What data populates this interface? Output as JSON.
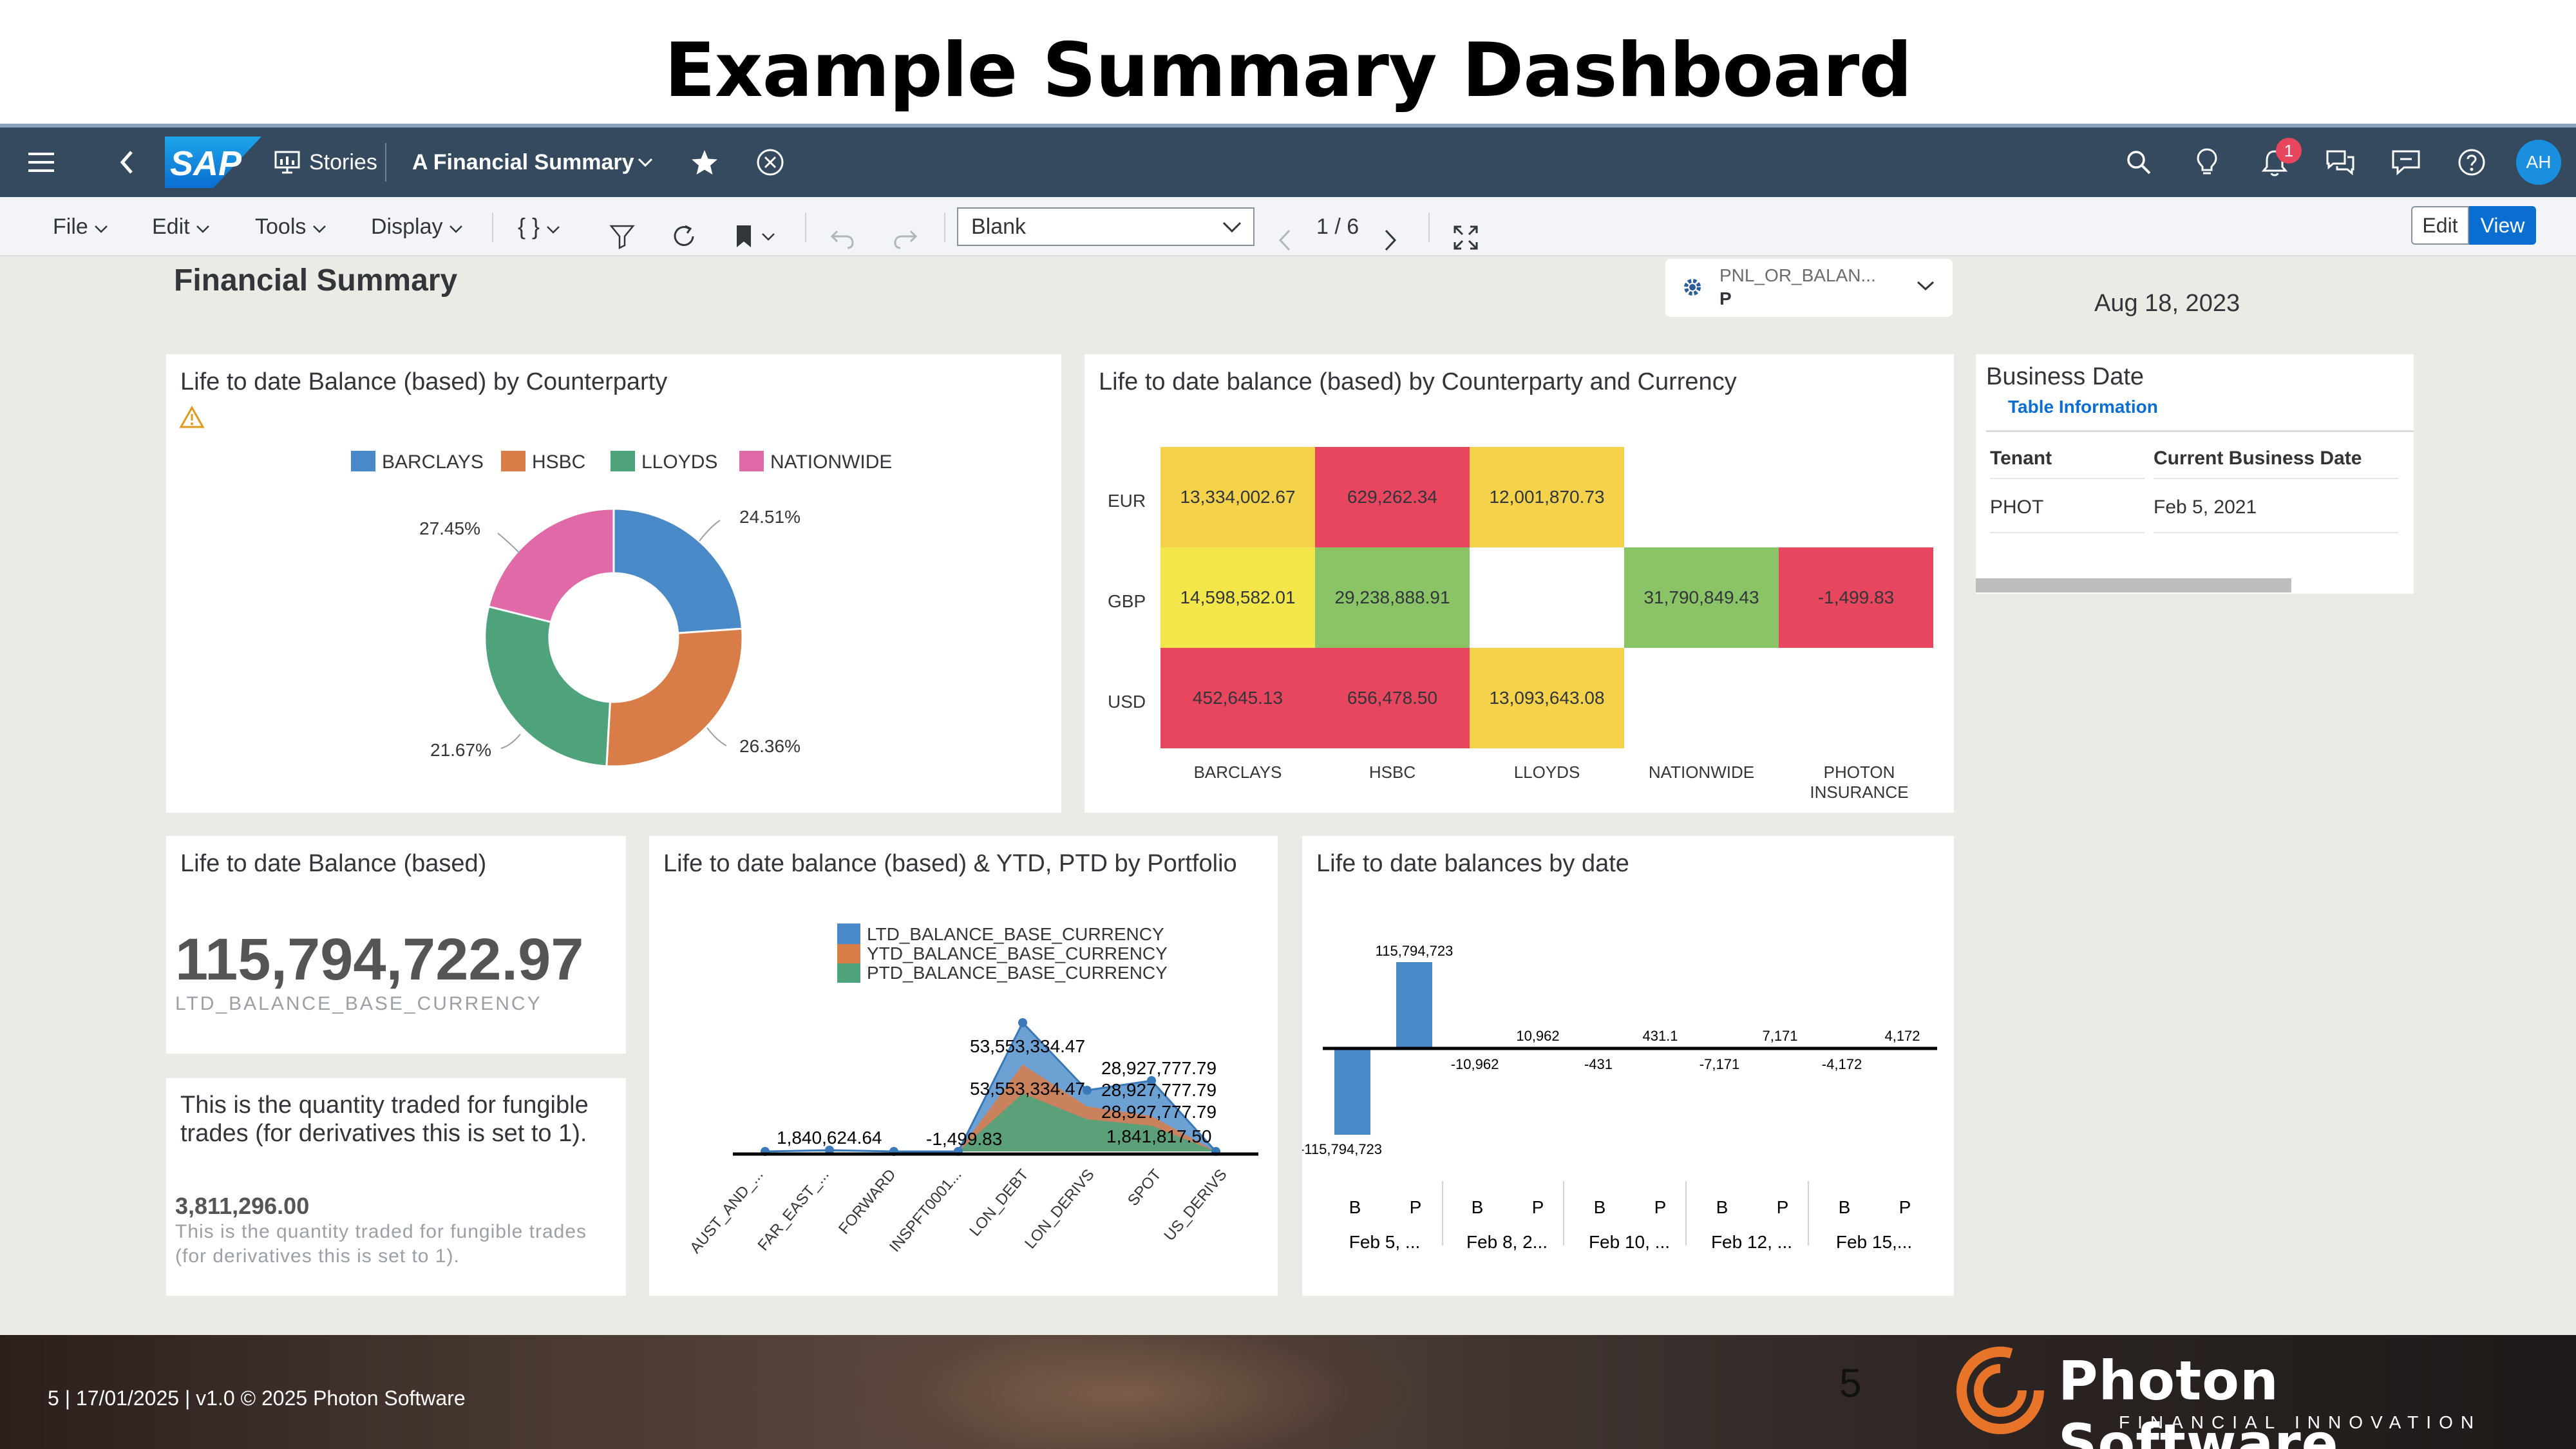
{
  "slide": {
    "title": "Example Summary Dashboard",
    "page_number": "5"
  },
  "shell": {
    "stories_label": "Stories",
    "story_name": "A Financial Summary",
    "notification_count": "1",
    "avatar_initials": "AH",
    "logo": "SAP",
    "icons": [
      "menu-icon",
      "back-icon",
      "stories-icon",
      "chevron-down-icon",
      "star-icon",
      "close-circle-icon",
      "search-icon",
      "lightbulb-icon",
      "bell-icon",
      "discussions-icon",
      "feedback-icon",
      "help-icon"
    ]
  },
  "toolbar": {
    "file": "File",
    "edit": "Edit",
    "tools": "Tools",
    "display": "Display",
    "curly": "{ }",
    "page_select": "Blank",
    "pager": "1 / 6",
    "edit_btn": "Edit",
    "view_btn": "View"
  },
  "page": {
    "title": "Financial Summary",
    "filter_line1": "PNL_OR_BALAN...",
    "filter_line2": "P",
    "date": "Aug 18, 2023"
  },
  "donut": {
    "title": "Life to date Balance (based) by Counterparty",
    "legend": [
      "BARCLAYS",
      "HSBC",
      "LLOYDS",
      "NATIONWIDE"
    ],
    "labels": [
      "24.51%",
      "26.36%",
      "21.67%",
      "27.45%"
    ]
  },
  "heatmap": {
    "title": "Life to date balance (based) by Counterparty and Currency",
    "rows": [
      "EUR",
      "GBP",
      "USD"
    ],
    "cols": [
      "BARCLAYS",
      "HSBC",
      "LLOYDS",
      "NATIONWIDE",
      "PHOTON INSURANCE"
    ],
    "cells": [
      [
        "13,334,002.67",
        "629,262.34",
        "12,001,870.73",
        "",
        ""
      ],
      [
        "14,598,582.01",
        "29,238,888.91",
        "",
        "31,790,849.43",
        "-1,499.83"
      ],
      [
        "452,645.13",
        "656,478.50",
        "13,093,643.08",
        "",
        ""
      ]
    ]
  },
  "business_date": {
    "title": "Business Date",
    "tab": "Table Information",
    "col_tenant": "Tenant",
    "col_date": "Current Business Date",
    "tenant": "PHOT",
    "date": "Feb 5, 2021"
  },
  "kpi": {
    "title": "Life to date Balance (based)",
    "value": "115,794,722.97",
    "measure": "LTD_BALANCE_BASE_CURRENCY"
  },
  "fungible": {
    "heading": "This is the quantity traded for fungible trades (for derivatives this is set to 1).",
    "value": "3,811,296.00",
    "desc": "This is the quantity traded for fungible trades (for derivatives this is set to 1)."
  },
  "portfolio": {
    "title": "Life to date balance (based) & YTD, PTD by Portfolio",
    "legend": [
      "LTD_BALANCE_BASE_CURRENCY",
      "YTD_BALANCE_BASE_CURRENCY",
      "PTD_BALANCE_BASE_CURRENCY"
    ],
    "labels": [
      "53,553,334.47",
      "53,553,334.47",
      "28,927,777.79",
      "28,927,777.79",
      "28,927,777.79",
      "1,840,624.64",
      "-1,499.83",
      "1,841,817.50"
    ],
    "categories": [
      "AUST_AND_...",
      "FAR_EAST_...",
      "FORWARD",
      "INSPFT0001...",
      "LON_DEBT",
      "LON_DERIVS",
      "SPOT",
      "US_DERIVS"
    ]
  },
  "by_date": {
    "title": "Life to date balances by date",
    "values": [
      "115,794,723",
      "-115,794,723",
      "10,962",
      "-10,962",
      "431.1",
      "-431",
      "7,171",
      "-7,171",
      "4,172",
      "-4,172"
    ],
    "sub": [
      "B",
      "P"
    ],
    "dates": [
      "Feb 5, ...",
      "Feb 8, 2...",
      "Feb 10, ...",
      "Feb 12, ...",
      "Feb 15,..."
    ]
  },
  "footer": {
    "left": "5  |  17/01/2025 | v1.0 © 2025 Photon Software",
    "page": "5",
    "brand": "Photon Software",
    "tagline": "FINANCIAL INNOVATION"
  },
  "colors": {
    "barclays": "#4a89c8",
    "hsbc": "#d97d48",
    "lloyds": "#4fa37c",
    "nationwide": "#e06aa8",
    "heat_yellow": "#f4d24c",
    "heat_red": "#e8455e",
    "heat_green": "#8ac467",
    "heat_lightyellow": "#f2e64b",
    "shellbar": "#354a5f",
    "accent": "#0a6ed1"
  }
}
